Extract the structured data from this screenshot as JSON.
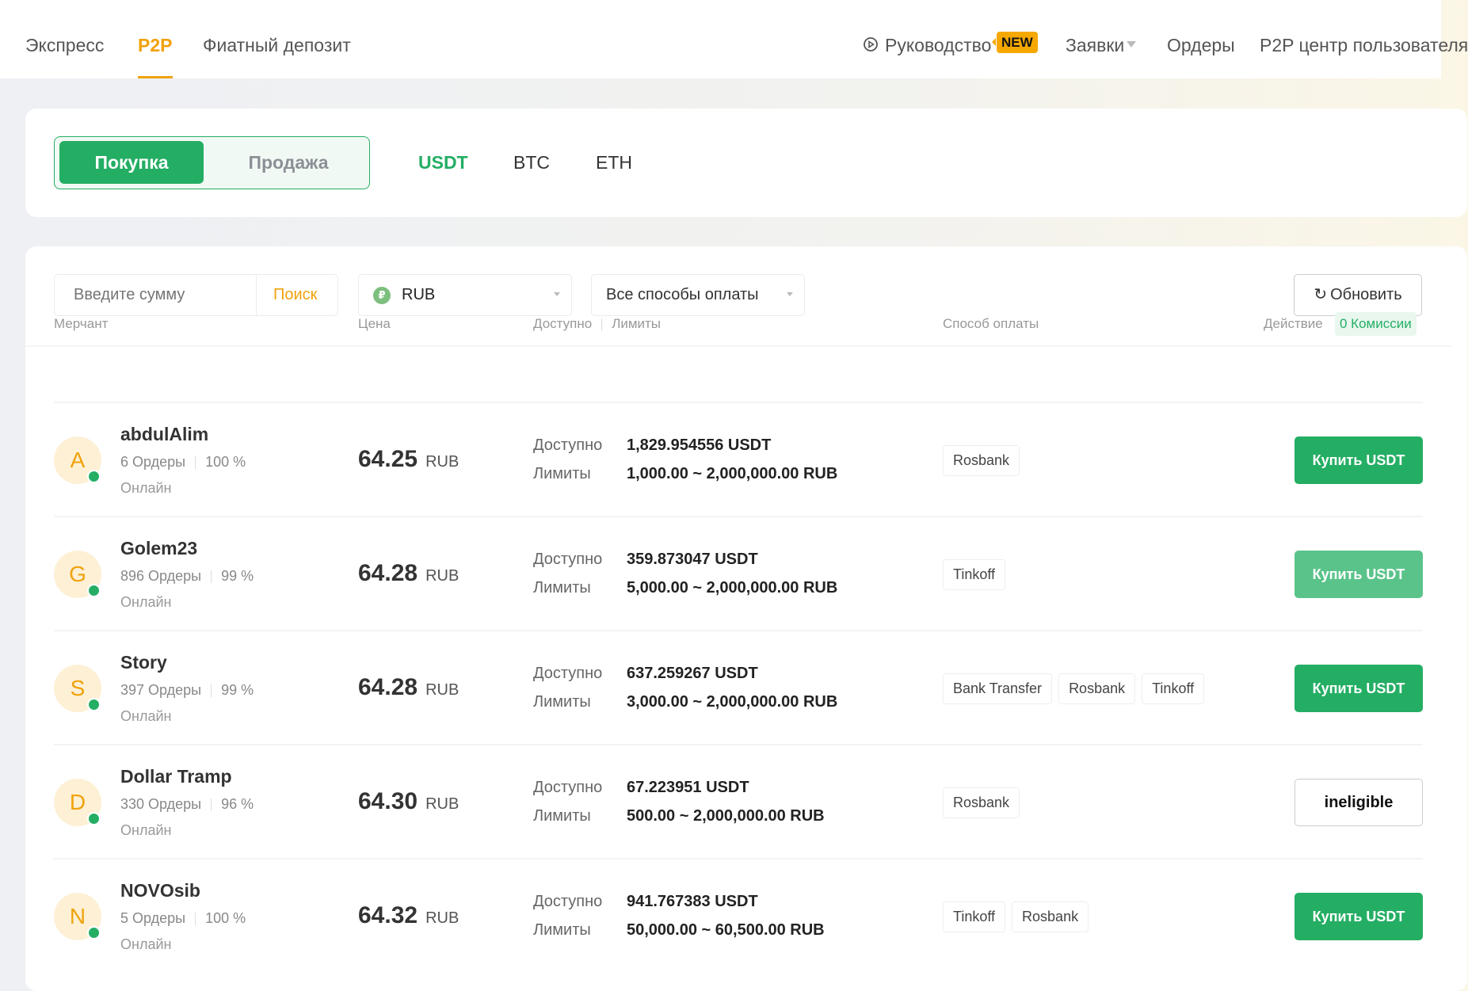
{
  "nav": {
    "tabs": [
      "Экспресс",
      "P2P",
      "Фиатный депозит"
    ],
    "active_tab": "P2P",
    "guide": "Руководство",
    "new_badge": "NEW",
    "requests": "Заявки",
    "orders": "Ордеры",
    "user_center": "P2P центр пользователя"
  },
  "trade": {
    "buy": "Покупка",
    "sell": "Продажа",
    "coins": [
      "USDT",
      "BTC",
      "ETH"
    ],
    "active_coin": "USDT"
  },
  "filters": {
    "amount_placeholder": "Введите сумму",
    "search": "Поиск",
    "currency": "RUB",
    "currency_icon": "₽",
    "payment": "Все способы оплаты",
    "refresh": "Обновить"
  },
  "table": {
    "headers": {
      "merchant": "Мерчант",
      "price": "Цена",
      "available": "Доступно",
      "limits": "Лимиты",
      "payment": "Способ оплаты",
      "action": "Действие",
      "zero_fee": "0 Комиссии"
    },
    "available_label": "Доступно",
    "limits_label": "Лимиты",
    "rows": [
      {
        "initial": "A",
        "name": "abdulAlim",
        "orders": "6 Ордеры",
        "rate": "100 %",
        "status": "Онлайн",
        "price": "64.25",
        "currency": "RUB",
        "available": "1,829.954556 USDT",
        "limits": "1,000.00 ~ 2,000,000.00 RUB",
        "payments": [
          "Rosbank"
        ],
        "action": "Купить USDT",
        "action_state": "normal"
      },
      {
        "initial": "G",
        "name": "Golem23",
        "orders": "896 Ордеры",
        "rate": "99 %",
        "status": "Онлайн",
        "price": "64.28",
        "currency": "RUB",
        "available": "359.873047 USDT",
        "limits": "5,000.00 ~ 2,000,000.00 RUB",
        "payments": [
          "Tinkoff"
        ],
        "action": "Купить USDT",
        "action_state": "hover"
      },
      {
        "initial": "S",
        "name": "Story",
        "orders": "397 Ордеры",
        "rate": "99 %",
        "status": "Онлайн",
        "price": "64.28",
        "currency": "RUB",
        "available": "637.259267 USDT",
        "limits": "3,000.00 ~ 2,000,000.00 RUB",
        "payments": [
          "Bank Transfer",
          "Rosbank",
          "Tinkoff"
        ],
        "action": "Купить USDT",
        "action_state": "normal"
      },
      {
        "initial": "D",
        "name": "Dollar Tramp",
        "orders": "330 Ордеры",
        "rate": "96 %",
        "status": "Онлайн",
        "price": "64.30",
        "currency": "RUB",
        "available": "67.223951 USDT",
        "limits": "500.00 ~ 2,000,000.00 RUB",
        "payments": [
          "Rosbank"
        ],
        "action": "ineligible",
        "action_state": "ineligible"
      },
      {
        "initial": "N",
        "name": "NOVOsib",
        "orders": "5 Ордеры",
        "rate": "100 %",
        "status": "Онлайн",
        "price": "64.32",
        "currency": "RUB",
        "available": "941.767383 USDT",
        "limits": "50,000.00 ~ 60,500.00 RUB",
        "payments": [
          "Tinkoff",
          "Rosbank"
        ],
        "action": "Купить USDT",
        "action_state": "normal"
      }
    ]
  },
  "colors": {
    "green": "#24ae64",
    "green_light": "#5ac38a",
    "orange": "#f0a20b"
  }
}
